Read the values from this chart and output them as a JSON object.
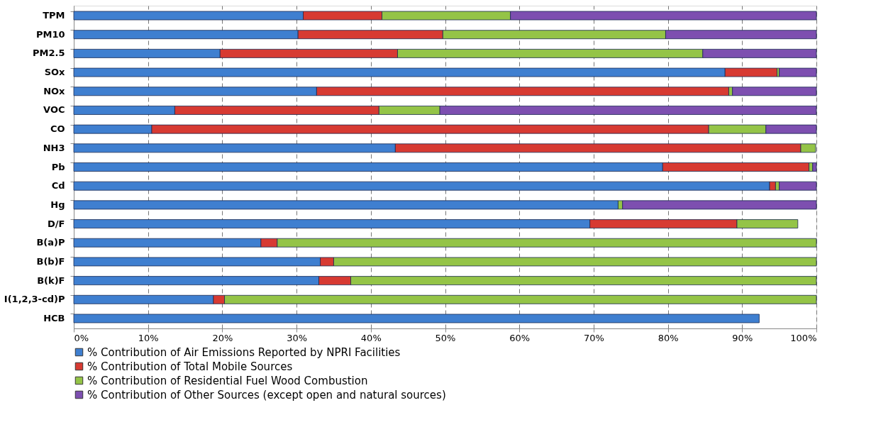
{
  "chart_data": {
    "type": "bar",
    "orientation": "horizontal",
    "stacked": true,
    "categories": [
      "TPM",
      "PM10",
      "PM2.5",
      "SOx",
      "NOx",
      "VOC",
      "CO",
      "NH3",
      "Pb",
      "Cd",
      "Hg",
      "D/F",
      "B(a)P",
      "B(b)F",
      "B(k)F",
      "I(1,2,3-cd)P",
      "HCB"
    ],
    "series": [
      {
        "name": "% Contribution of Air Emissions Reported by NPRI Facilities",
        "color": "#3f7fd0",
        "values": [
          30.9,
          30.2,
          19.7,
          87.7,
          32.7,
          13.6,
          10.5,
          43.3,
          79.3,
          93.7,
          73.3,
          69.5,
          25.2,
          33.2,
          33.0,
          18.8,
          92.3
        ]
      },
      {
        "name": "% Contribution of Total Mobile Sources",
        "color": "#d73a32",
        "values": [
          10.6,
          19.5,
          23.9,
          7.0,
          55.5,
          27.5,
          75.0,
          54.6,
          19.7,
          0.8,
          null,
          19.8,
          2.2,
          1.8,
          4.3,
          1.5,
          null
        ]
      },
      {
        "name": "% Contribution of Residential Fuel Wood Combustion",
        "color": "#94c447",
        "values": [
          17.3,
          30.0,
          41.1,
          0.3,
          0.5,
          8.2,
          7.7,
          2.0,
          0.5,
          0.5,
          0.6,
          8.2,
          72.6,
          65.0,
          62.7,
          79.7,
          null
        ]
      },
      {
        "name": "% Contribution of Other Sources (except open and natural sources)",
        "color": "#7d4fb0",
        "values": [
          41.2,
          20.3,
          15.3,
          5.0,
          11.3,
          50.7,
          6.8,
          null,
          0.5,
          5.0,
          26.1,
          null,
          null,
          null,
          null,
          null,
          null
        ]
      }
    ],
    "xlim": [
      0,
      100
    ],
    "xticks": [
      {
        "value": 0,
        "label": "0%"
      },
      {
        "value": 10,
        "label": "10%"
      },
      {
        "value": 20,
        "label": "20%"
      },
      {
        "value": 30,
        "label": "30%"
      },
      {
        "value": 40,
        "label": "40%"
      },
      {
        "value": 50,
        "label": "50%"
      },
      {
        "value": 60,
        "label": "60%"
      },
      {
        "value": 70,
        "label": "70%"
      },
      {
        "value": 80,
        "label": "80%"
      },
      {
        "value": 90,
        "label": "90%"
      },
      {
        "value": 100,
        "label": "100%"
      }
    ],
    "grid": "x",
    "legend": "bottom"
  }
}
